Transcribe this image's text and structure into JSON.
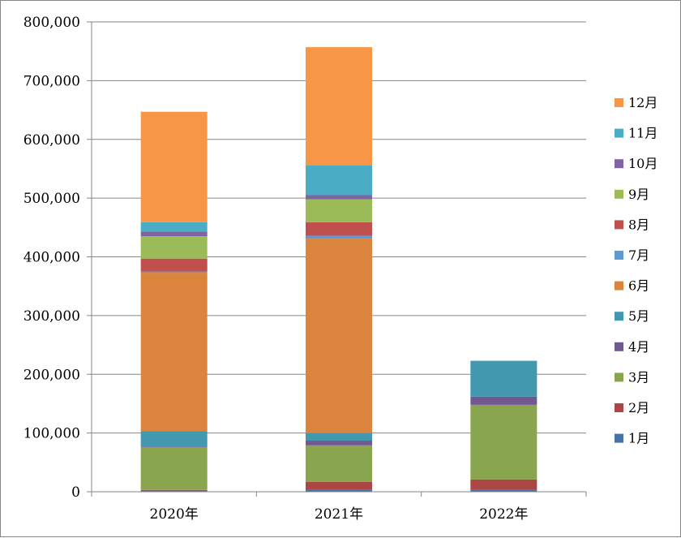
{
  "chart_data": {
    "type": "bar",
    "stacked": true,
    "categories": [
      "2020年",
      "2021年",
      "2022年"
    ],
    "ylim": [
      0,
      800000
    ],
    "yticks": [
      0,
      100000,
      200000,
      300000,
      400000,
      500000,
      600000,
      700000,
      800000
    ],
    "ytick_labels": [
      "0",
      "100,000",
      "200,000",
      "300,000",
      "400,000",
      "500,000",
      "600,000",
      "700,000",
      "800,000"
    ],
    "grid": true,
    "legend_position": "right",
    "series": [
      {
        "name": "1月",
        "color": "#4572A7",
        "values": [
          2000,
          3000,
          4000
        ]
      },
      {
        "name": "2月",
        "color": "#AA4643",
        "values": [
          1000,
          14000,
          17000
        ]
      },
      {
        "name": "3月",
        "color": "#89A54E",
        "values": [
          73000,
          62000,
          127000
        ]
      },
      {
        "name": "4月",
        "color": "#71588F",
        "values": [
          1000,
          8000,
          14000
        ]
      },
      {
        "name": "5月",
        "color": "#4198AF",
        "values": [
          26000,
          13000,
          61000
        ]
      },
      {
        "name": "6月",
        "color": "#DB843D",
        "values": [
          270000,
          331000,
          0
        ]
      },
      {
        "name": "7月",
        "color": "#5B9BD5",
        "values": [
          2000,
          5000,
          0
        ]
      },
      {
        "name": "8月",
        "color": "#C0504D",
        "values": [
          22000,
          23000,
          0
        ]
      },
      {
        "name": "9月",
        "color": "#9BBB59",
        "values": [
          38000,
          39000,
          0
        ]
      },
      {
        "name": "10月",
        "color": "#8064A2",
        "values": [
          8000,
          7000,
          0
        ]
      },
      {
        "name": "11月",
        "color": "#4BACC6",
        "values": [
          16000,
          51000,
          0
        ]
      },
      {
        "name": "12月",
        "color": "#F79646",
        "values": [
          188000,
          201000,
          0
        ]
      }
    ]
  }
}
